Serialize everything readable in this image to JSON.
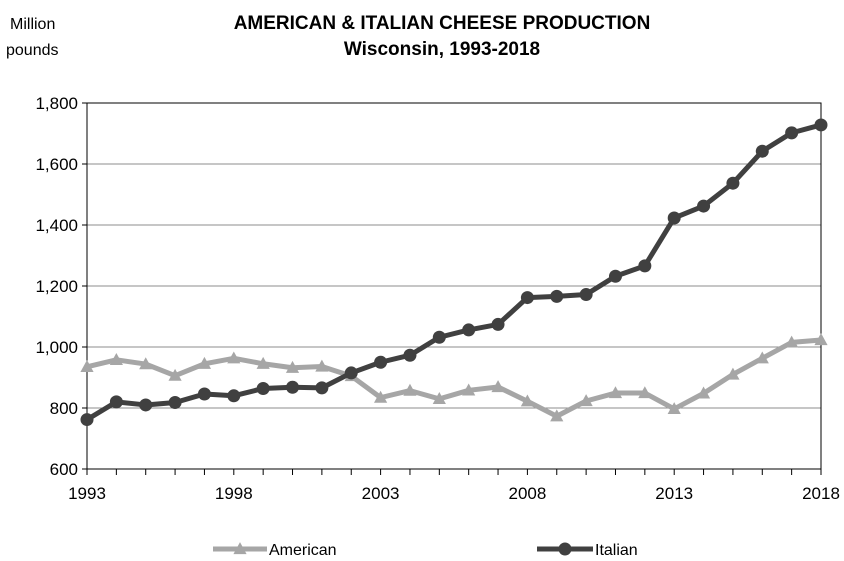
{
  "chart_data": {
    "type": "line",
    "title": "AMERICAN & ITALIAN CHEESE PRODUCTION",
    "subtitle": "Wisconsin, 1993-2018",
    "ylabel": "Million pounds",
    "ylabel_lines": [
      "Million",
      "pounds"
    ],
    "xlabel": "",
    "x": [
      1993,
      1994,
      1995,
      1996,
      1997,
      1998,
      1999,
      2000,
      2001,
      2002,
      2003,
      2004,
      2005,
      2006,
      2007,
      2008,
      2009,
      2010,
      2011,
      2012,
      2013,
      2014,
      2015,
      2016,
      2017,
      2018
    ],
    "xlim": [
      1993,
      2018
    ],
    "xticks": [
      1993,
      1998,
      2003,
      2008,
      2013,
      2018
    ],
    "ylim": [
      600,
      1800
    ],
    "yticks": [
      600,
      800,
      1000,
      1200,
      1400,
      1600,
      1800
    ],
    "ytick_labels": [
      "600",
      "800",
      "1,000",
      "1,200",
      "1,400",
      "1,600",
      "1,800"
    ],
    "grid": "horizontal",
    "legend_position": "bottom",
    "series": [
      {
        "name": "American",
        "color": "#a6a6a6",
        "marker": "triangle",
        "values": [
          935,
          958,
          944,
          906,
          945,
          963,
          945,
          932,
          936,
          905,
          834,
          857,
          830,
          858,
          869,
          822,
          773,
          823,
          849,
          849,
          797,
          848,
          910,
          963,
          1015,
          1023
        ]
      },
      {
        "name": "Italian",
        "color": "#404040",
        "marker": "circle",
        "values": [
          762,
          820,
          810,
          818,
          846,
          840,
          864,
          868,
          866,
          915,
          950,
          973,
          1032,
          1056,
          1074,
          1162,
          1166,
          1172,
          1232,
          1266,
          1423,
          1462,
          1537,
          1642,
          1702,
          1728
        ]
      }
    ]
  }
}
